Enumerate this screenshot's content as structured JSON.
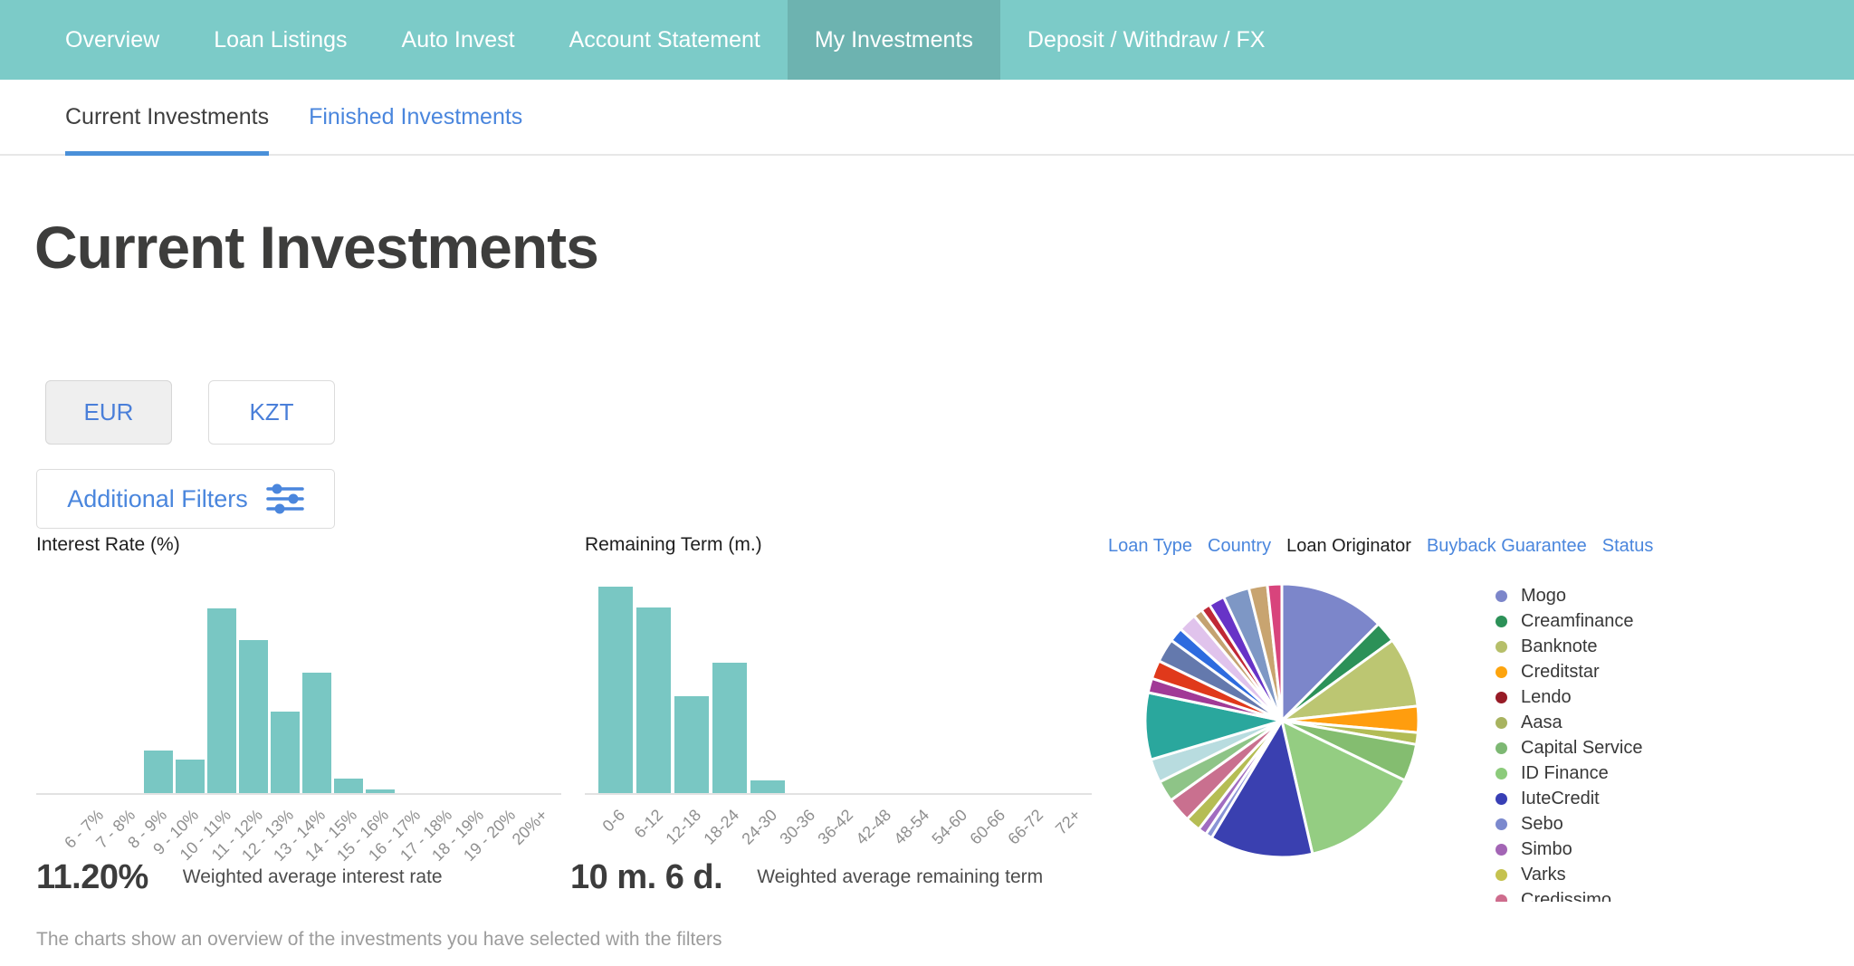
{
  "colors": {
    "nav_teal": "#7ccbc8",
    "nav_teal_active": "#6db3b0",
    "bar_teal": "#79c7c3",
    "link_blue": "#4a86dd",
    "underline_blue": "#4a90d9",
    "heading_dark": "#3d3d3c",
    "axis_gray": "#e2e2e2",
    "axis_label_gray": "#8f8f8f"
  },
  "nav": {
    "items": [
      {
        "label": "Overview",
        "active": false
      },
      {
        "label": "Loan Listings",
        "active": false
      },
      {
        "label": "Auto Invest",
        "active": false
      },
      {
        "label": "Account Statement",
        "active": false
      },
      {
        "label": "My Investments",
        "active": true
      },
      {
        "label": "Deposit / Withdraw / FX",
        "active": false
      }
    ]
  },
  "subnav": {
    "tabs": [
      {
        "label": "Current Investments",
        "active": true
      },
      {
        "label": "Finished Investments",
        "active": false
      }
    ]
  },
  "page": {
    "title": "Current Investments"
  },
  "currency": {
    "options": [
      {
        "label": "EUR",
        "selected": true
      },
      {
        "label": "KZT",
        "selected": false
      }
    ]
  },
  "filters": {
    "label": "Additional Filters"
  },
  "pie_panel": {
    "tabs": [
      {
        "label": "Loan Type",
        "active": false
      },
      {
        "label": "Country",
        "active": false
      },
      {
        "label": "Loan Originator",
        "active": true
      },
      {
        "label": "Buyback Guarantee",
        "active": false
      },
      {
        "label": "Status",
        "active": false
      }
    ]
  },
  "stats": [
    {
      "value": "11.20%",
      "label": "Weighted average interest rate"
    },
    {
      "value": "10 m. 6 d.",
      "label": "Weighted average remaining term"
    }
  ],
  "footer": {
    "note": "The charts show an overview of the investments you have selected with the filters"
  },
  "chart_data": [
    {
      "type": "bar",
      "title": "Interest Rate (%)",
      "categories": [
        "6 - 7%",
        "7 - 8%",
        "8 - 9%",
        "9 - 10%",
        "10 - 11%",
        "11 - 12%",
        "12 - 13%",
        "13 - 14%",
        "14 - 15%",
        "15 - 16%",
        "16 - 17%",
        "17 - 18%",
        "18 - 19%",
        "19 - 20%",
        "20%+"
      ],
      "values": [
        0,
        0,
        23,
        18,
        100,
        83,
        44,
        65,
        8,
        2,
        0,
        0,
        0,
        0,
        0
      ],
      "values_note": "relative height, percent of tallest bar (no y-axis shown)",
      "xlabel": "",
      "ylabel": "",
      "grid": false
    },
    {
      "type": "bar",
      "title": "Remaining Term (m.)",
      "categories": [
        "0-6",
        "6-12",
        "12-18",
        "18-24",
        "24-30",
        "30-36",
        "36-42",
        "42-48",
        "48-54",
        "54-60",
        "60-66",
        "66-72",
        "72+"
      ],
      "values": [
        100,
        90,
        47,
        63,
        6,
        0,
        0,
        0,
        0,
        0,
        0,
        0,
        0
      ],
      "values_note": "relative height, percent of tallest bar (no y-axis shown)",
      "xlabel": "",
      "ylabel": "",
      "grid": false
    },
    {
      "type": "pie",
      "title": "Loan Originator",
      "values_note": "share percent estimated from slice angles, clockwise from 12 o'clock",
      "slices": [
        {
          "label": "Mogo",
          "color": "#7c86ca",
          "value": 12.5
        },
        {
          "label": "Creamfinance",
          "color": "#2c9158",
          "value": 2.5
        },
        {
          "label": "Banknote",
          "color": "#bcc672",
          "value": 8.3
        },
        {
          "label": "Creditstar",
          "color": "#ff9d0e",
          "value": 3.1
        },
        {
          "label": "Aasa",
          "color": "#b2bc55",
          "value": 1.4
        },
        {
          "label": "Capital Service",
          "color": "#84bd70",
          "value": 4.4
        },
        {
          "label": "ID Finance",
          "color": "#94cd82",
          "value": 14.2
        },
        {
          "label": "IuteCredit",
          "color": "#3a40b0",
          "value": 12.2
        },
        {
          "label": "Sebo",
          "color": "#8a94d6",
          "value": 0.8
        },
        {
          "label": "Simbo",
          "color": "#a06cc0",
          "value": 1.0
        },
        {
          "label": "Varks",
          "color": "#b5bd54",
          "value": 1.8
        },
        {
          "label": "Credissimo",
          "color": "#c9708f",
          "value": 2.9
        },
        {
          "label": "",
          "color": "#8ec487",
          "value": 2.5
        },
        {
          "label": "",
          "color": "#b8dcdf",
          "value": 2.8
        },
        {
          "label": "",
          "color": "#2aa79d",
          "value": 7.9
        },
        {
          "label": "",
          "color": "#a13a96",
          "value": 1.7
        },
        {
          "label": "",
          "color": "#e0391b",
          "value": 2.2
        },
        {
          "label": "",
          "color": "#6479ad",
          "value": 2.8
        },
        {
          "label": "",
          "color": "#2e6bdf",
          "value": 1.7
        },
        {
          "label": "",
          "color": "#e0c3ec",
          "value": 2.2
        },
        {
          "label": "",
          "color": "#c4a271",
          "value": 1.1
        },
        {
          "label": "",
          "color": "#c02836",
          "value": 1.1
        },
        {
          "label": "",
          "color": "#6733c7",
          "value": 1.9
        },
        {
          "label": "",
          "color": "#7e97c5",
          "value": 3.1
        },
        {
          "label": "",
          "color": "#c8a470",
          "value": 2.2
        },
        {
          "label": "",
          "color": "#d8447c",
          "value": 1.7
        }
      ],
      "legend": [
        {
          "label": "Mogo",
          "color": "#7c86ca"
        },
        {
          "label": "Creamfinance",
          "color": "#2c9158"
        },
        {
          "label": "Banknote",
          "color": "#b6bf6a"
        },
        {
          "label": "Creditstar",
          "color": "#fda40e"
        },
        {
          "label": "Lendo",
          "color": "#971b26"
        },
        {
          "label": "Aasa",
          "color": "#a8b35f"
        },
        {
          "label": "Capital Service",
          "color": "#7db873"
        },
        {
          "label": "ID Finance",
          "color": "#8ccb7b"
        },
        {
          "label": "IuteCredit",
          "color": "#383fb5"
        },
        {
          "label": "Sebo",
          "color": "#7b89ce"
        },
        {
          "label": "Simbo",
          "color": "#a365b5"
        },
        {
          "label": "Varks",
          "color": "#c5c24f"
        },
        {
          "label": "Credissimo",
          "color": "#ce6c8d"
        }
      ],
      "legend_clipped": true,
      "legend_position": "right"
    }
  ]
}
